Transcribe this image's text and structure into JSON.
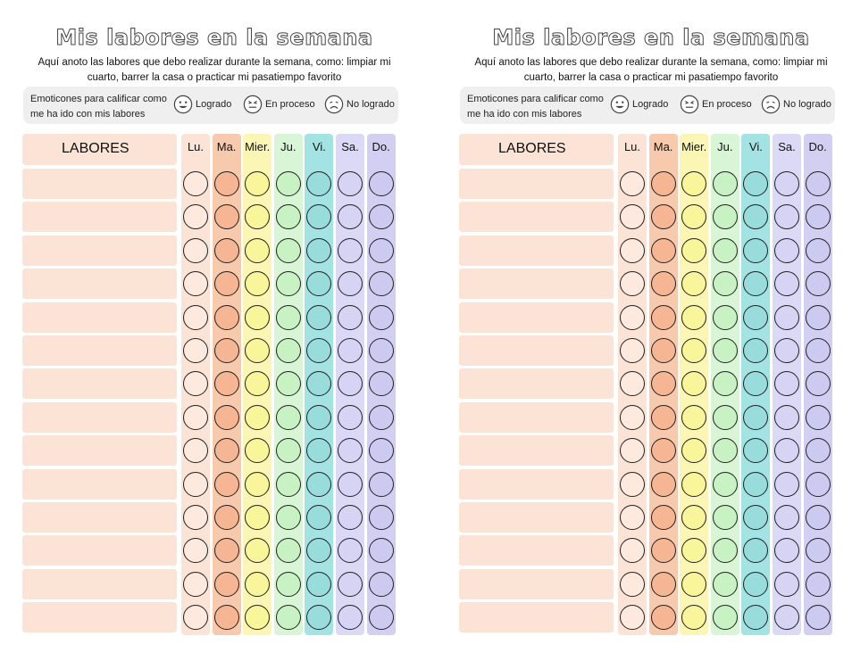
{
  "sheets": [
    {
      "title": "Mis labores en la semana",
      "description_line1": "Aquí anoto las labores que debo realizar durante la semana, como: limpiar  mi",
      "description_line2": "cuarto, barrer la casa o practicar mi pasatiempo favorito",
      "emoticons_label_line1": "Emoticones para calificar como",
      "emoticons_label_line2": "me ha ido con mis labores",
      "legend": [
        {
          "icon": "smile-face-icon",
          "label": "Logrado"
        },
        {
          "icon": "neutral-face-icon",
          "label": "En proceso"
        },
        {
          "icon": "sad-face-icon",
          "label": "No logrado"
        }
      ],
      "labores_header": "LABORES",
      "days": [
        {
          "label": "Lu.",
          "color": "#fbe3d6",
          "circle": "#fde9de"
        },
        {
          "label": "Ma.",
          "color": "#f7c9ad",
          "circle": "#f6b593"
        },
        {
          "label": "Mier.",
          "color": "#fbf6b4",
          "circle": "#f8f59a"
        },
        {
          "label": "Ju.",
          "color": "#d8f5d6",
          "circle": "#c9f2c4"
        },
        {
          "label": "Vi.",
          "color": "#a4e3e4",
          "circle": "#98dcdc"
        },
        {
          "label": "Sa.",
          "color": "#dcd9f7",
          "circle": "#d6d3f5"
        },
        {
          "label": "Do.",
          "color": "#d2cff3",
          "circle": "#cdcaf2"
        }
      ],
      "rows": 14
    },
    {
      "title": "Mis labores en la semana",
      "description_line1": "Aquí anoto las labores que debo realizar durante la semana, como: limpiar  mi",
      "description_line2": "cuarto, barrer la casa o practicar mi pasatiempo favorito",
      "emoticons_label_line1": "Emoticones para calificar como",
      "emoticons_label_line2": "me ha ido con mis labores",
      "legend": [
        {
          "icon": "smile-face-icon",
          "label": "Logrado"
        },
        {
          "icon": "neutral-face-icon",
          "label": "En proceso"
        },
        {
          "icon": "sad-face-icon",
          "label": "No logrado"
        }
      ],
      "labores_header": "LABORES",
      "days": [
        {
          "label": "Lu.",
          "color": "#fbe3d6",
          "circle": "#fde9de"
        },
        {
          "label": "Ma.",
          "color": "#f7c9ad",
          "circle": "#f6b593"
        },
        {
          "label": "Mier.",
          "color": "#fbf6b4",
          "circle": "#f8f59a"
        },
        {
          "label": "Ju.",
          "color": "#d8f5d6",
          "circle": "#c9f2c4"
        },
        {
          "label": "Vi.",
          "color": "#a4e3e4",
          "circle": "#98dcdc"
        },
        {
          "label": "Sa.",
          "color": "#dcd9f7",
          "circle": "#d6d3f5"
        },
        {
          "label": "Do.",
          "color": "#d2cff3",
          "circle": "#cdcaf2"
        }
      ],
      "rows": 14
    }
  ]
}
